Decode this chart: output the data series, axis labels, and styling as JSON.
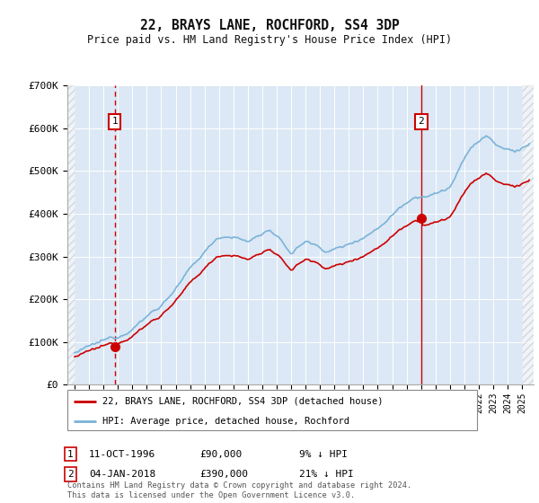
{
  "title": "22, BRAYS LANE, ROCHFORD, SS4 3DP",
  "subtitle": "Price paid vs. HM Land Registry's House Price Index (HPI)",
  "ylim": [
    0,
    700000
  ],
  "xlim_start": 1993.5,
  "xlim_end": 2025.8,
  "hpi_color": "#7ab3d9",
  "price_color": "#cc0000",
  "vline_color": "#cc0000",
  "sale1_x": 1996.78,
  "sale1_y": 90000,
  "sale2_x": 2018.02,
  "sale2_y": 390000,
  "legend_line1": "22, BRAYS LANE, ROCHFORD, SS4 3DP (detached house)",
  "legend_line2": "HPI: Average price, detached house, Rochford",
  "fig_bg": "#ffffff",
  "plot_bg": "#dce8f5",
  "grid_color": "#ffffff",
  "hatch_color": "#c0c0c0"
}
